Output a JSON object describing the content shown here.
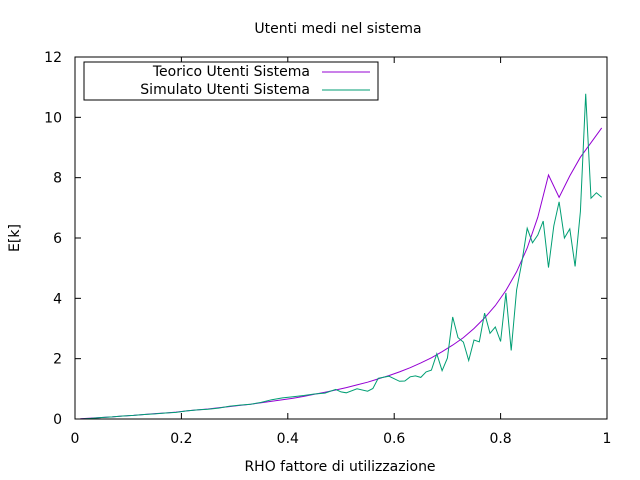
{
  "chart_data": {
    "type": "line",
    "title": "Utenti medi nel sistema",
    "xlabel": "RHO fattore di utilizzazione",
    "ylabel": "E[k]",
    "xlim": [
      0,
      1
    ],
    "ylim": [
      0,
      12
    ],
    "xticks": [
      "0",
      "0.2",
      "0.4",
      "0.6",
      "0.8",
      "1"
    ],
    "yticks": [
      "0",
      "2",
      "4",
      "6",
      "8",
      "10",
      "12"
    ],
    "grid": false,
    "legend_position": "top-left",
    "series": [
      {
        "name": "Teorico Utenti Sistema",
        "color": "#9400d3",
        "x": [
          0.01,
          0.03,
          0.05,
          0.07,
          0.09,
          0.11,
          0.13,
          0.15,
          0.17,
          0.19,
          0.21,
          0.23,
          0.25,
          0.27,
          0.29,
          0.31,
          0.33,
          0.35,
          0.37,
          0.39,
          0.41,
          0.43,
          0.45,
          0.47,
          0.49,
          0.51,
          0.53,
          0.55,
          0.57,
          0.59,
          0.61,
          0.63,
          0.65,
          0.67,
          0.69,
          0.71,
          0.73,
          0.75,
          0.77,
          0.79,
          0.81,
          0.83,
          0.85,
          0.87,
          0.89,
          0.91,
          0.93,
          0.95,
          0.97,
          0.99
        ],
        "values": [
          0.01,
          0.03,
          0.05,
          0.07,
          0.1,
          0.12,
          0.15,
          0.18,
          0.2,
          0.23,
          0.27,
          0.3,
          0.33,
          0.37,
          0.41,
          0.45,
          0.49,
          0.54,
          0.59,
          0.64,
          0.69,
          0.75,
          0.82,
          0.89,
          0.96,
          1.04,
          1.13,
          1.22,
          1.33,
          1.44,
          1.56,
          1.7,
          1.86,
          2.03,
          2.23,
          2.45,
          2.7,
          3.0,
          3.35,
          3.76,
          4.26,
          4.88,
          5.67,
          6.69,
          8.09,
          7.35,
          8.06,
          8.68,
          9.16,
          9.65
        ]
      },
      {
        "name": "Simulato Utenti Sistema",
        "color": "#009e73",
        "x": [
          0.01,
          0.03,
          0.05,
          0.07,
          0.09,
          0.11,
          0.13,
          0.15,
          0.17,
          0.19,
          0.21,
          0.23,
          0.25,
          0.27,
          0.29,
          0.31,
          0.33,
          0.35,
          0.37,
          0.39,
          0.41,
          0.43,
          0.45,
          0.47,
          0.49,
          0.5,
          0.51,
          0.53,
          0.55,
          0.56,
          0.57,
          0.59,
          0.61,
          0.62,
          0.63,
          0.64,
          0.65,
          0.66,
          0.67,
          0.68,
          0.69,
          0.7,
          0.71,
          0.72,
          0.73,
          0.74,
          0.75,
          0.76,
          0.77,
          0.78,
          0.79,
          0.8,
          0.81,
          0.82,
          0.83,
          0.84,
          0.85,
          0.86,
          0.87,
          0.88,
          0.89,
          0.9,
          0.91,
          0.92,
          0.93,
          0.94,
          0.95,
          0.96,
          0.97,
          0.98,
          0.99
        ],
        "values": [
          0.0,
          0.02,
          0.05,
          0.07,
          0.1,
          0.12,
          0.15,
          0.17,
          0.2,
          0.22,
          0.27,
          0.3,
          0.32,
          0.36,
          0.42,
          0.46,
          0.49,
          0.55,
          0.64,
          0.7,
          0.74,
          0.78,
          0.83,
          0.86,
          0.98,
          0.9,
          0.87,
          1.0,
          0.92,
          1.01,
          1.35,
          1.42,
          1.25,
          1.26,
          1.4,
          1.43,
          1.38,
          1.56,
          1.62,
          2.16,
          1.6,
          2.02,
          3.38,
          2.7,
          2.55,
          1.94,
          2.62,
          2.56,
          3.51,
          2.84,
          3.05,
          2.57,
          4.18,
          2.27,
          4.28,
          5.2,
          6.32,
          5.84,
          6.1,
          6.56,
          5.02,
          6.4,
          7.2,
          6.0,
          6.3,
          5.06,
          6.88,
          10.78,
          7.32,
          7.5,
          7.35
        ]
      }
    ]
  }
}
